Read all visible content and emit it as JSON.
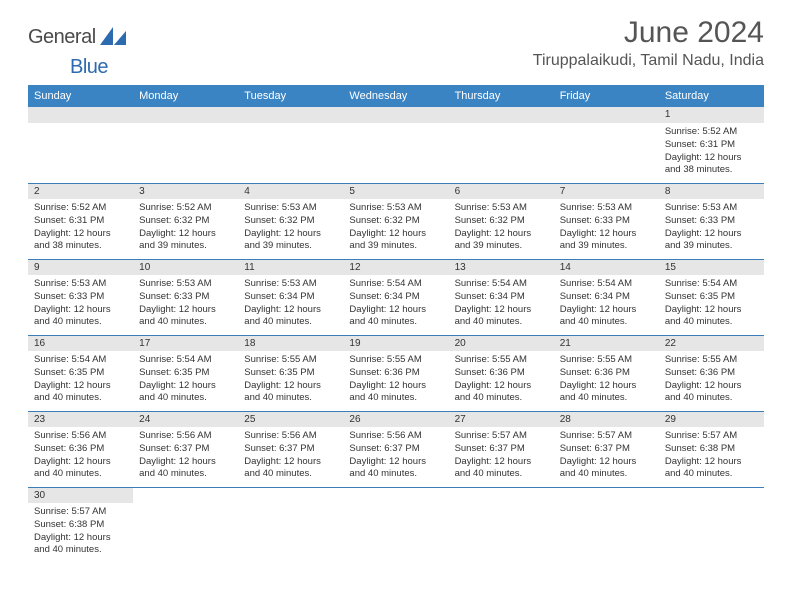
{
  "brand": {
    "part1": "General",
    "part2": "Blue"
  },
  "title": "June 2024",
  "location": "Tiruppalaikudi, Tamil Nadu, India",
  "colors": {
    "header_bg": "#3b84c4",
    "header_text": "#ffffff",
    "daynum_bg": "#e6e6e6",
    "row_border": "#3b7db8",
    "brand_accent": "#2d6bb0",
    "text": "#333333"
  },
  "weekdays": [
    "Sunday",
    "Monday",
    "Tuesday",
    "Wednesday",
    "Thursday",
    "Friday",
    "Saturday"
  ],
  "weeks": [
    [
      null,
      null,
      null,
      null,
      null,
      null,
      {
        "n": "1",
        "sr": "5:52 AM",
        "ss": "6:31 PM",
        "dl": "12 hours and 38 minutes."
      }
    ],
    [
      {
        "n": "2",
        "sr": "5:52 AM",
        "ss": "6:31 PM",
        "dl": "12 hours and 38 minutes."
      },
      {
        "n": "3",
        "sr": "5:52 AM",
        "ss": "6:32 PM",
        "dl": "12 hours and 39 minutes."
      },
      {
        "n": "4",
        "sr": "5:53 AM",
        "ss": "6:32 PM",
        "dl": "12 hours and 39 minutes."
      },
      {
        "n": "5",
        "sr": "5:53 AM",
        "ss": "6:32 PM",
        "dl": "12 hours and 39 minutes."
      },
      {
        "n": "6",
        "sr": "5:53 AM",
        "ss": "6:32 PM",
        "dl": "12 hours and 39 minutes."
      },
      {
        "n": "7",
        "sr": "5:53 AM",
        "ss": "6:33 PM",
        "dl": "12 hours and 39 minutes."
      },
      {
        "n": "8",
        "sr": "5:53 AM",
        "ss": "6:33 PM",
        "dl": "12 hours and 39 minutes."
      }
    ],
    [
      {
        "n": "9",
        "sr": "5:53 AM",
        "ss": "6:33 PM",
        "dl": "12 hours and 40 minutes."
      },
      {
        "n": "10",
        "sr": "5:53 AM",
        "ss": "6:33 PM",
        "dl": "12 hours and 40 minutes."
      },
      {
        "n": "11",
        "sr": "5:53 AM",
        "ss": "6:34 PM",
        "dl": "12 hours and 40 minutes."
      },
      {
        "n": "12",
        "sr": "5:54 AM",
        "ss": "6:34 PM",
        "dl": "12 hours and 40 minutes."
      },
      {
        "n": "13",
        "sr": "5:54 AM",
        "ss": "6:34 PM",
        "dl": "12 hours and 40 minutes."
      },
      {
        "n": "14",
        "sr": "5:54 AM",
        "ss": "6:34 PM",
        "dl": "12 hours and 40 minutes."
      },
      {
        "n": "15",
        "sr": "5:54 AM",
        "ss": "6:35 PM",
        "dl": "12 hours and 40 minutes."
      }
    ],
    [
      {
        "n": "16",
        "sr": "5:54 AM",
        "ss": "6:35 PM",
        "dl": "12 hours and 40 minutes."
      },
      {
        "n": "17",
        "sr": "5:54 AM",
        "ss": "6:35 PM",
        "dl": "12 hours and 40 minutes."
      },
      {
        "n": "18",
        "sr": "5:55 AM",
        "ss": "6:35 PM",
        "dl": "12 hours and 40 minutes."
      },
      {
        "n": "19",
        "sr": "5:55 AM",
        "ss": "6:36 PM",
        "dl": "12 hours and 40 minutes."
      },
      {
        "n": "20",
        "sr": "5:55 AM",
        "ss": "6:36 PM",
        "dl": "12 hours and 40 minutes."
      },
      {
        "n": "21",
        "sr": "5:55 AM",
        "ss": "6:36 PM",
        "dl": "12 hours and 40 minutes."
      },
      {
        "n": "22",
        "sr": "5:55 AM",
        "ss": "6:36 PM",
        "dl": "12 hours and 40 minutes."
      }
    ],
    [
      {
        "n": "23",
        "sr": "5:56 AM",
        "ss": "6:36 PM",
        "dl": "12 hours and 40 minutes."
      },
      {
        "n": "24",
        "sr": "5:56 AM",
        "ss": "6:37 PM",
        "dl": "12 hours and 40 minutes."
      },
      {
        "n": "25",
        "sr": "5:56 AM",
        "ss": "6:37 PM",
        "dl": "12 hours and 40 minutes."
      },
      {
        "n": "26",
        "sr": "5:56 AM",
        "ss": "6:37 PM",
        "dl": "12 hours and 40 minutes."
      },
      {
        "n": "27",
        "sr": "5:57 AM",
        "ss": "6:37 PM",
        "dl": "12 hours and 40 minutes."
      },
      {
        "n": "28",
        "sr": "5:57 AM",
        "ss": "6:37 PM",
        "dl": "12 hours and 40 minutes."
      },
      {
        "n": "29",
        "sr": "5:57 AM",
        "ss": "6:38 PM",
        "dl": "12 hours and 40 minutes."
      }
    ],
    [
      {
        "n": "30",
        "sr": "5:57 AM",
        "ss": "6:38 PM",
        "dl": "12 hours and 40 minutes."
      },
      null,
      null,
      null,
      null,
      null,
      null
    ]
  ],
  "labels": {
    "sunrise": "Sunrise:",
    "sunset": "Sunset:",
    "daylight": "Daylight:"
  }
}
